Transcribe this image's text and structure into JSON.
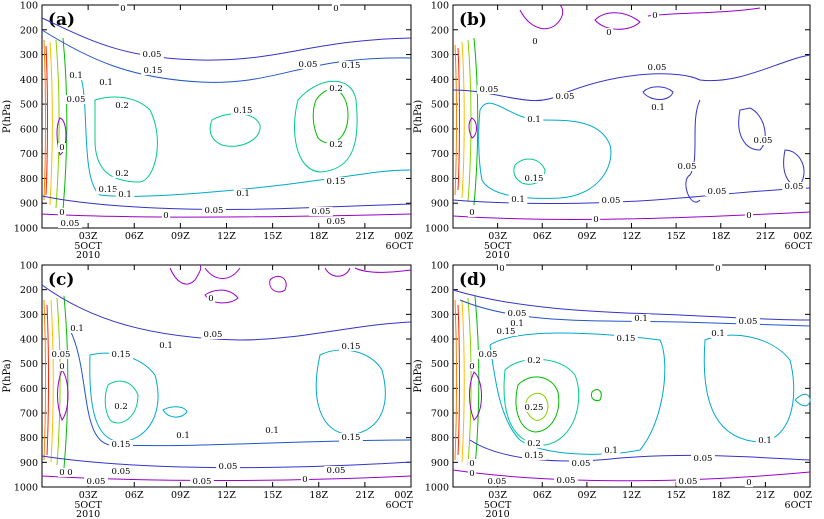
{
  "chart_data": [
    {
      "type": "contour",
      "panel_label": "(a)",
      "ylabel": "P(hPa)",
      "y_ticks": [
        "100",
        "200",
        "300",
        "400",
        "500",
        "600",
        "700",
        "800",
        "900",
        "1000"
      ],
      "x_ticks": [
        "03Z",
        "06Z",
        "09Z",
        "12Z",
        "15Z",
        "18Z",
        "21Z",
        "00Z"
      ],
      "x_sublabels": {
        "first": [
          "5OCT",
          "2010"
        ],
        "last": [
          "6OCT"
        ]
      },
      "contour_labels": [
        "0",
        "0",
        "0.05",
        "0.05",
        "0.1",
        "0.15",
        "0.1",
        "0.15",
        "0.05",
        "0.05",
        "0.2",
        "0.15",
        "0.2",
        "0",
        "0.2",
        "0.2",
        "0.15",
        "0.15",
        "0.1",
        "0.1",
        "0.05",
        "0.05",
        "0",
        "0",
        "0.05"
      ]
    },
    {
      "type": "contour",
      "panel_label": "(b)",
      "ylabel": "P(hPa)",
      "y_ticks": [
        "100",
        "200",
        "300",
        "400",
        "500",
        "600",
        "700",
        "800",
        "900",
        "1000"
      ],
      "x_ticks": [
        "03Z",
        "06Z",
        "09Z",
        "12Z",
        "15Z",
        "18Z",
        "21Z",
        "00Z"
      ],
      "x_sublabels": {
        "first": [
          "5OCT",
          "2010"
        ],
        "last": [
          "6OCT"
        ]
      },
      "contour_labels": [
        "0",
        "0",
        "0",
        "0",
        "0.05",
        "0.05",
        "0.05",
        "0.1",
        "0.1",
        "0.05",
        "0.05",
        "0.15",
        "0.05",
        "0.1",
        "0.05",
        "0.05",
        "0",
        "0"
      ]
    },
    {
      "type": "contour",
      "panel_label": "(c)",
      "ylabel": "P(hPa)",
      "y_ticks": [
        "100",
        "200",
        "300",
        "400",
        "500",
        "600",
        "700",
        "800",
        "900",
        "1000"
      ],
      "x_ticks": [
        "03Z",
        "06Z",
        "09Z",
        "12Z",
        "15Z",
        "18Z",
        "21Z",
        "00Z"
      ],
      "x_sublabels": {
        "first": [
          "5OCT",
          "2010"
        ],
        "last": [
          "6OCT"
        ]
      },
      "contour_labels": [
        "0",
        "0",
        "0.1",
        "0.05",
        "0.1",
        "0.15",
        "0.15",
        "0.05",
        "0",
        "0.2",
        "0.15",
        "0.1",
        "0.1",
        "0.15",
        "0.05",
        "0.05",
        "0",
        "0.05",
        "0",
        "0.05",
        "0.05"
      ]
    },
    {
      "type": "contour",
      "panel_label": "(d)",
      "ylabel": "P(hPa)",
      "y_ticks": [
        "100",
        "200",
        "300",
        "400",
        "500",
        "600",
        "700",
        "800",
        "900",
        "1000"
      ],
      "x_ticks": [
        "03Z",
        "06Z",
        "09Z",
        "12Z",
        "15Z",
        "18Z",
        "21Z",
        "00Z"
      ],
      "x_sublabels": {
        "first": [
          "5OCT",
          "2010"
        ],
        "last": [
          "6OCT"
        ]
      },
      "contour_labels": [
        "0",
        "0",
        "0.05",
        "0.05",
        "0.1",
        "0.1",
        "0.05",
        "0.15",
        "0.15",
        "0.1",
        "0.05",
        "0",
        "0.2",
        "0.25",
        "0.2",
        "0.15",
        "0.1",
        "0.1",
        "0.05",
        "0.05",
        "0",
        "0.05",
        "0",
        "0.05",
        "0.05",
        "0"
      ]
    }
  ]
}
